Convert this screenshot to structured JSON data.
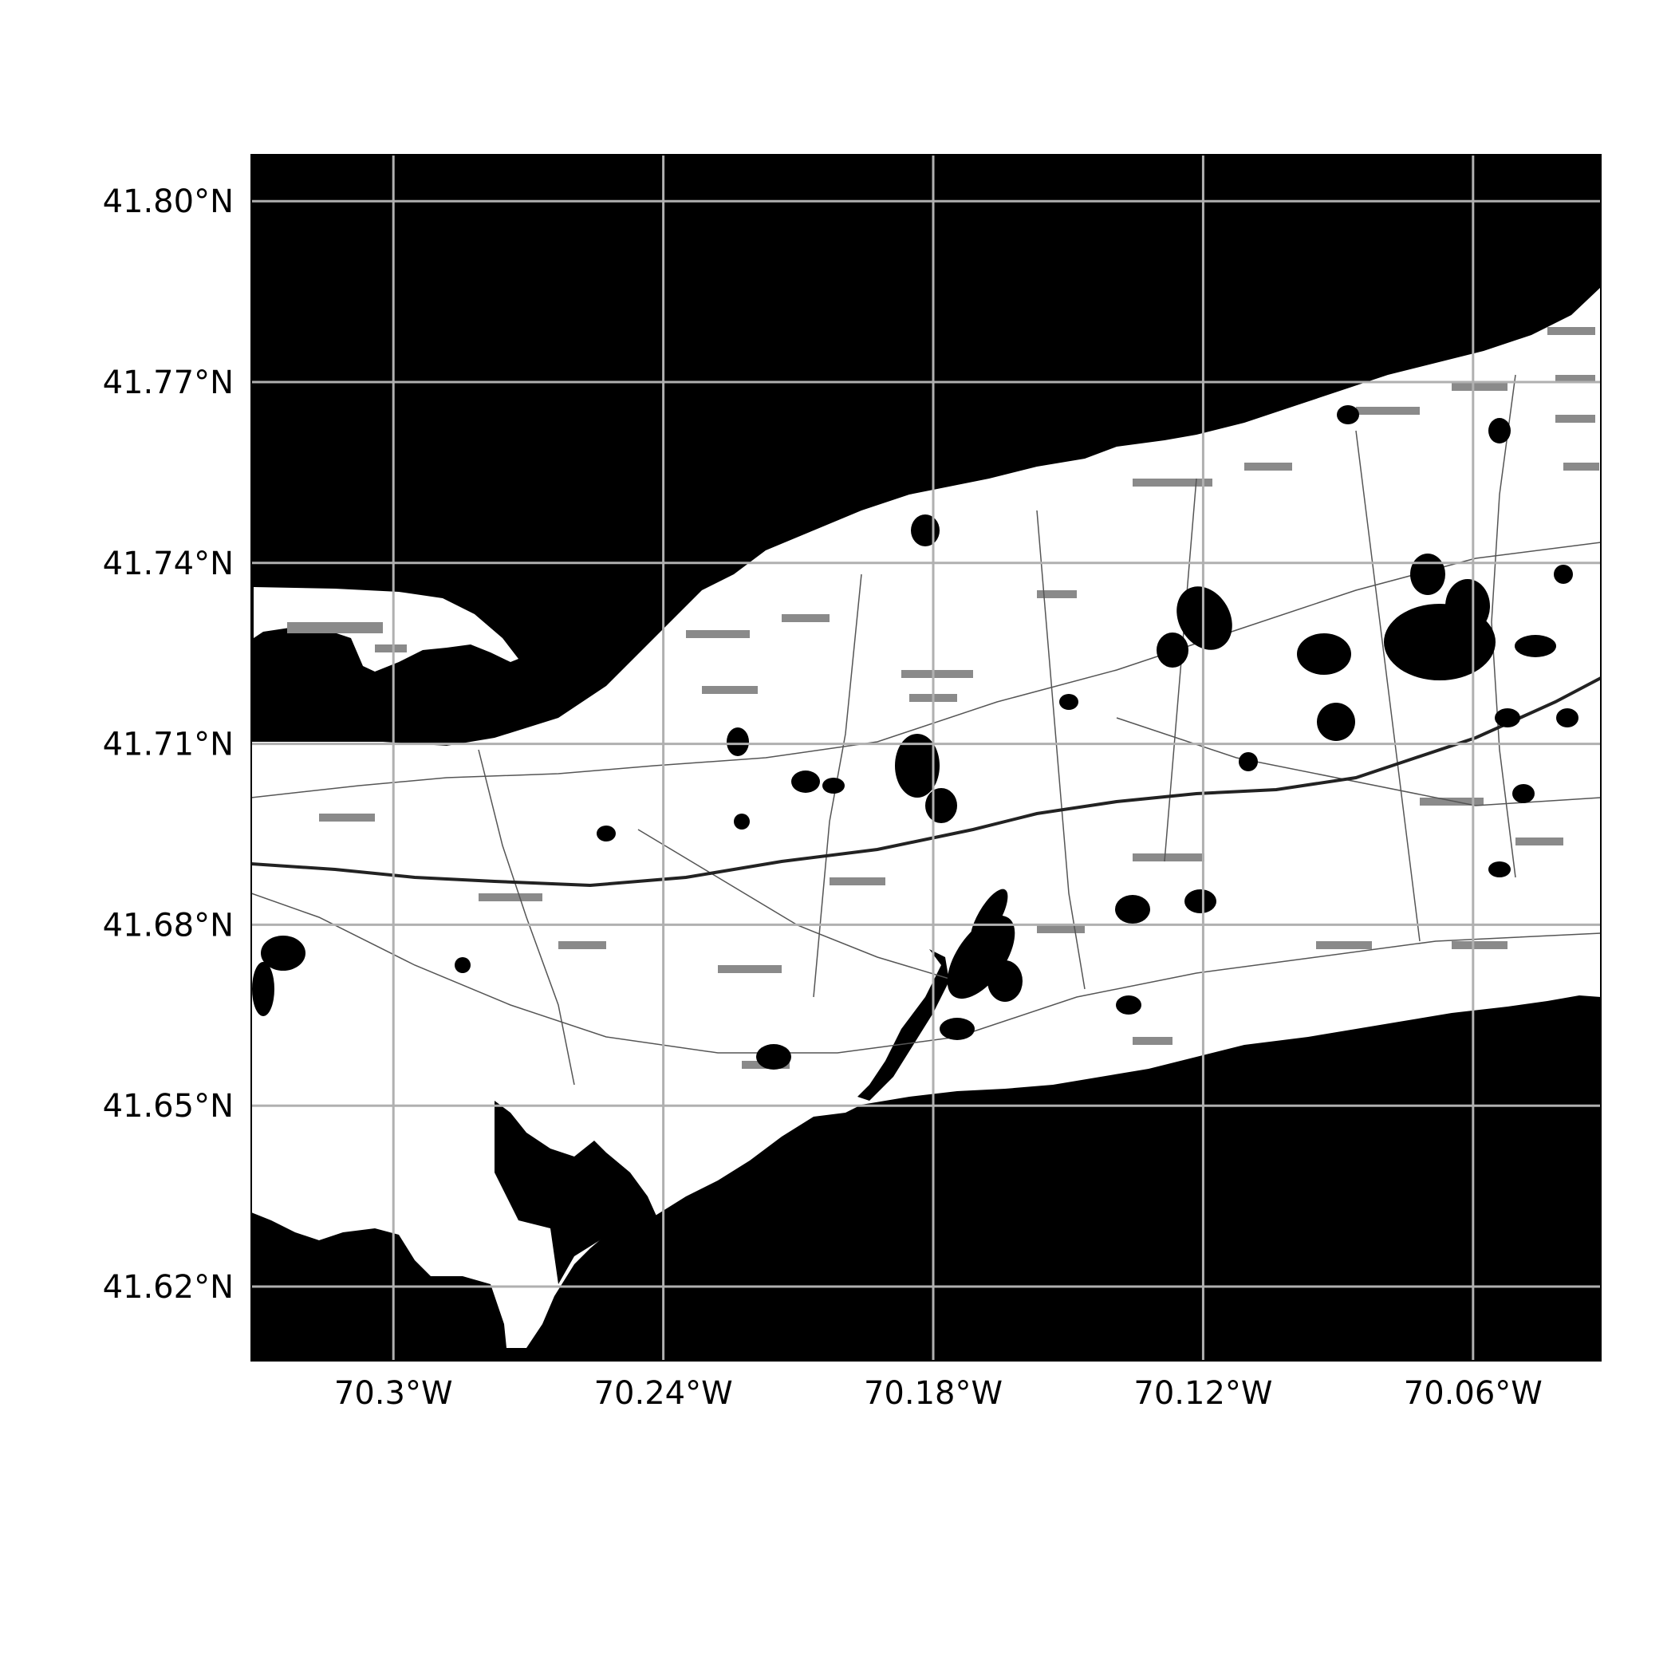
{
  "map": {
    "type": "map",
    "projection": "PlateCarree",
    "extent": {
      "lon": [
        -70.3316,
        -70.0316
      ],
      "lat": [
        41.6077,
        41.8077
      ]
    },
    "grid": true,
    "colors": {
      "water": "#000000",
      "land": "#ffffff",
      "grid": "#b0b0b0",
      "road": "#555555",
      "highway": "#222222",
      "wooded": "#8a8a8a"
    },
    "x_ticks": [
      {
        "value": -70.3,
        "label": "70.3°W"
      },
      {
        "value": -70.24,
        "label": "70.24°W"
      },
      {
        "value": -70.18,
        "label": "70.18°W"
      },
      {
        "value": -70.12,
        "label": "70.12°W"
      },
      {
        "value": -70.06,
        "label": "70.06°W"
      }
    ],
    "y_ticks": [
      {
        "value": 41.62,
        "label": "41.62°N"
      },
      {
        "value": 41.65,
        "label": "41.65°N"
      },
      {
        "value": 41.68,
        "label": "41.68°N"
      },
      {
        "value": 41.71,
        "label": "41.71°N"
      },
      {
        "value": 41.74,
        "label": "41.74°N"
      },
      {
        "value": 41.77,
        "label": "41.77°N"
      },
      {
        "value": 41.8,
        "label": "41.80°N"
      }
    ]
  }
}
